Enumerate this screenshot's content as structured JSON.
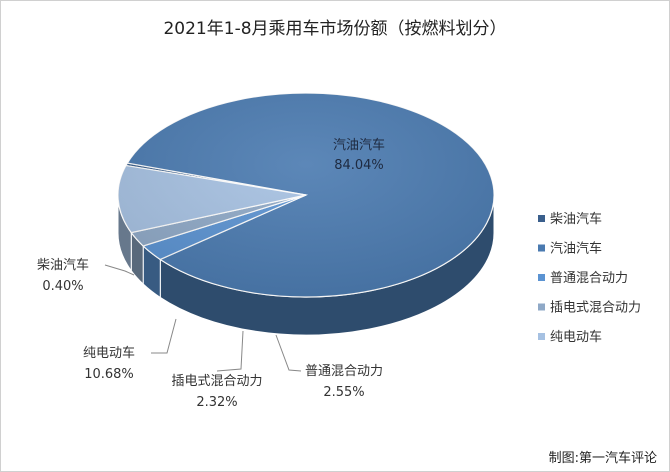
{
  "chart_data": {
    "type": "pie",
    "title": "2021年1-8月乘用车市场份额（按燃料划分）",
    "unit": "%",
    "legend_position": "right",
    "slices": [
      {
        "name": "柴油汽车",
        "value": 0.4,
        "label": "0.40%",
        "color": "#3a5f8c"
      },
      {
        "name": "汽油汽车",
        "value": 84.04,
        "label": "84.04%",
        "color": "#4a7ab0"
      },
      {
        "name": "普通混合动力",
        "value": 2.55,
        "label": "2.55%",
        "color": "#5b93d2"
      },
      {
        "name": "插电式混合动力",
        "value": 2.32,
        "label": "2.32%",
        "color": "#8fa9c7"
      },
      {
        "name": "纯电动车",
        "value": 10.68,
        "label": "10.68%",
        "color": "#a6c1e2"
      }
    ]
  },
  "source": "制图:第一汽车评论"
}
